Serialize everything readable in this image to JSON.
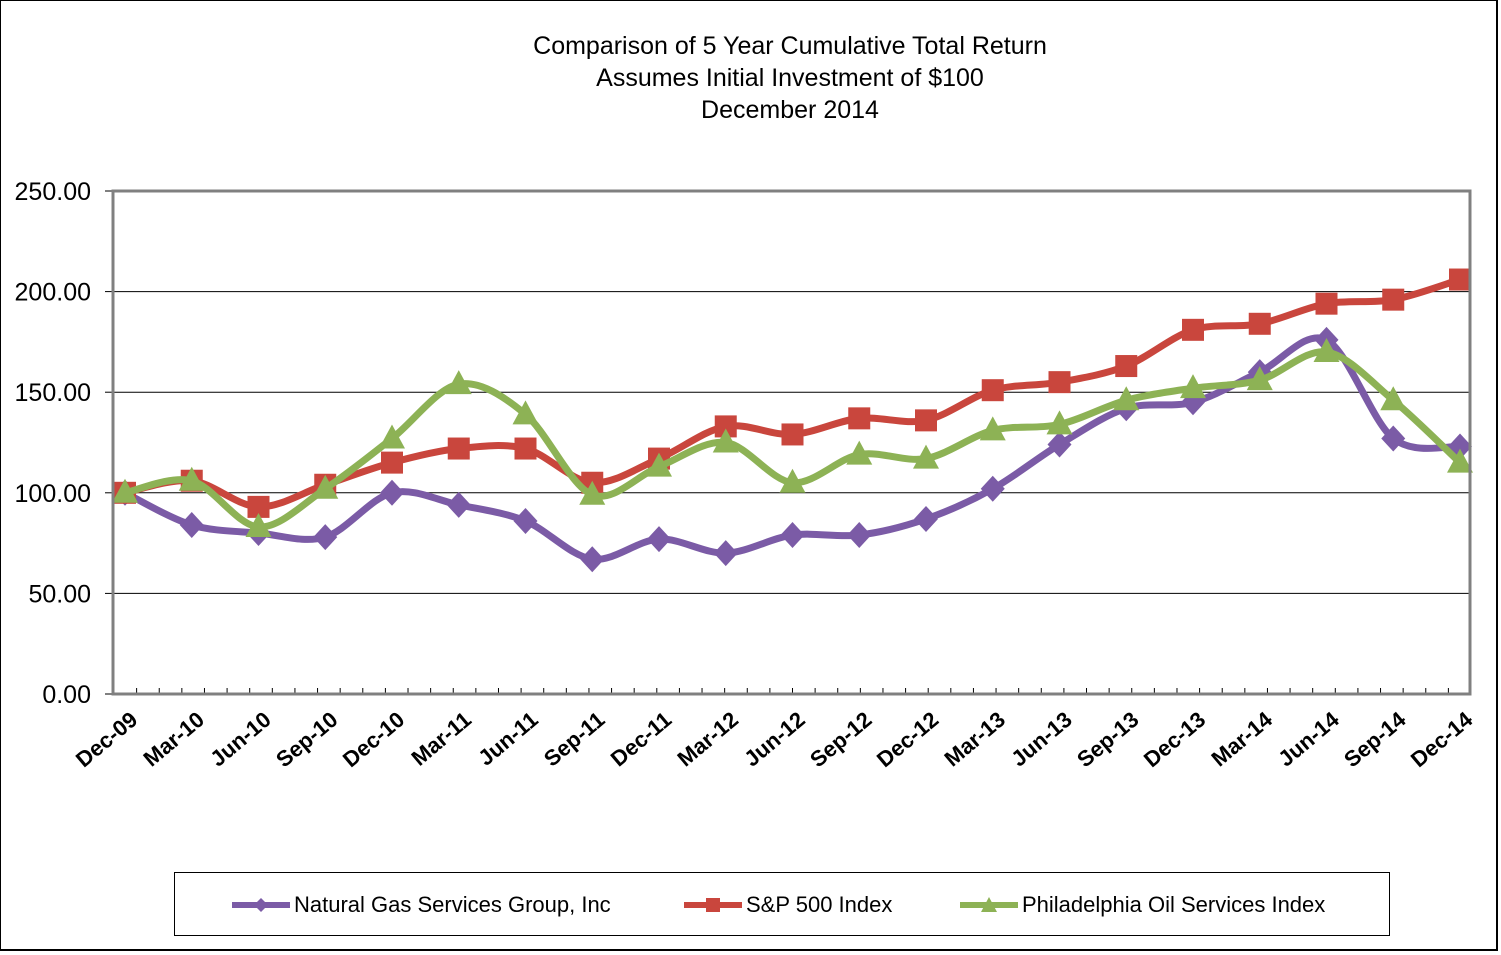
{
  "chart_data": {
    "type": "line",
    "title": "Comparison of 5 Year Cumulative Total Return",
    "subtitle_lines": [
      "Assumes Initial Investment of $100",
      "December 2014"
    ],
    "xlabel": "",
    "ylabel": "",
    "ylim": [
      0,
      250
    ],
    "yticks": [
      "0.00",
      "50.00",
      "100.00",
      "150.00",
      "200.00",
      "250.00"
    ],
    "ytick_values": [
      0,
      50,
      100,
      150,
      200,
      250
    ],
    "grid": true,
    "legend_position": "bottom",
    "categories": [
      "Dec-09",
      "Mar-10",
      "Jun-10",
      "Sep-10",
      "Dec-10",
      "Mar-11",
      "Jun-11",
      "Sep-11",
      "Dec-11",
      "Mar-12",
      "Jun-12",
      "Sep-12",
      "Dec-12",
      "Mar-13",
      "Jun-13",
      "Sep-13",
      "Dec-13",
      "Mar-14",
      "Jun-14",
      "Sep-14",
      "Dec-14"
    ],
    "series": [
      {
        "name": "Natural Gas Services Group, Inc",
        "color": "#7B5BA6",
        "marker": "diamond",
        "values": [
          100,
          84,
          80,
          78,
          100,
          94,
          86,
          67,
          77,
          70,
          79,
          79,
          87,
          102,
          124,
          142,
          145,
          160,
          176,
          127,
          123
        ]
      },
      {
        "name": "S&P 500 Index",
        "color": "#C9463D",
        "marker": "square",
        "values": [
          100,
          106,
          93,
          104,
          115,
          122,
          122,
          105,
          117,
          133,
          129,
          137,
          136,
          151,
          155,
          163,
          181,
          184,
          194,
          196,
          206
        ]
      },
      {
        "name": "Philadelphia Oil Services Index",
        "color": "#8DB255",
        "marker": "triangle",
        "values": [
          100,
          106,
          83,
          102,
          127,
          154,
          139,
          99,
          113,
          125,
          105,
          119,
          117,
          131,
          134,
          146,
          152,
          156,
          170,
          146,
          115
        ]
      }
    ]
  }
}
